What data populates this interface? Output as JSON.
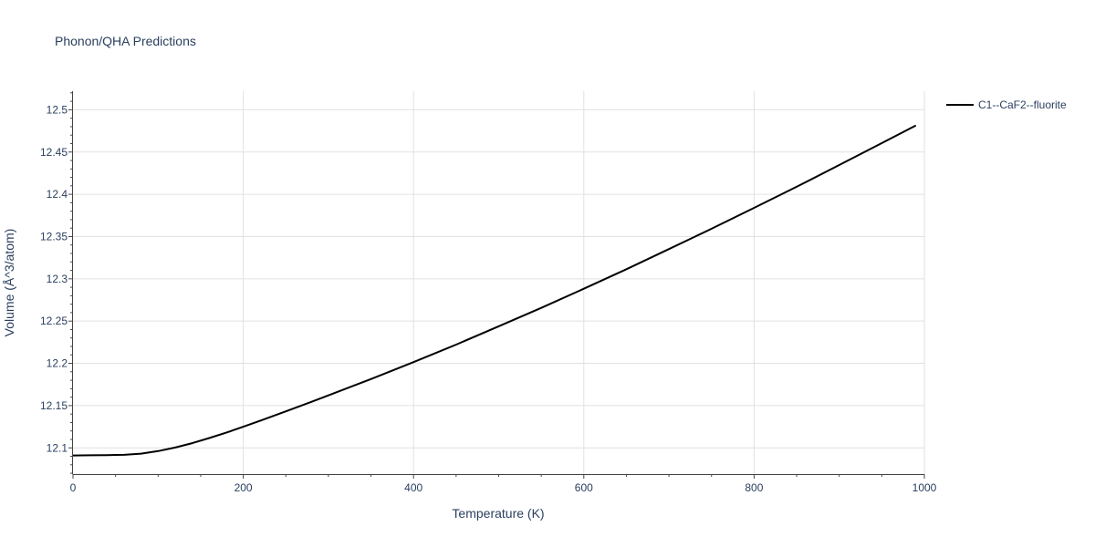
{
  "chart_data": {
    "type": "line",
    "title": "Phonon/QHA Predictions",
    "xlabel": "Temperature (K)",
    "ylabel": "Volume (Å^3/atom)",
    "xlim": [
      0,
      1000
    ],
    "ylim": [
      12.069,
      12.522
    ],
    "grid": true,
    "legend_position": "top-right",
    "x_ticks": [
      0,
      200,
      400,
      600,
      800,
      1000
    ],
    "x_tick_labels": [
      "0",
      "200",
      "400",
      "600",
      "800",
      "1000"
    ],
    "y_ticks": [
      12.1,
      12.15,
      12.2,
      12.25,
      12.3,
      12.35,
      12.4,
      12.45,
      12.5
    ],
    "y_tick_labels": [
      "12.1",
      "12.15",
      "12.2",
      "12.25",
      "12.3",
      "12.35",
      "12.4",
      "12.45",
      "12.5"
    ],
    "series": [
      {
        "name": "C1--CaF2--fluorite",
        "color": "#000000",
        "x": [
          0,
          20,
          40,
          60,
          80,
          100,
          120,
          140,
          160,
          180,
          200,
          220,
          250,
          280,
          300,
          350,
          400,
          450,
          500,
          550,
          600,
          650,
          700,
          750,
          800,
          850,
          900,
          950,
          990
        ],
        "y": [
          12.091,
          12.0912,
          12.0914,
          12.0918,
          12.0932,
          12.0962,
          12.1004,
          12.1056,
          12.1116,
          12.118,
          12.125,
          12.1322,
          12.1432,
          12.1544,
          12.1621,
          12.1814,
          12.2014,
          12.2222,
          12.2438,
          12.2656,
          12.2883,
          12.3114,
          12.3352,
          12.3592,
          12.3839,
          12.4089,
          12.4346,
          12.4605,
          12.4814
        ]
      }
    ]
  }
}
